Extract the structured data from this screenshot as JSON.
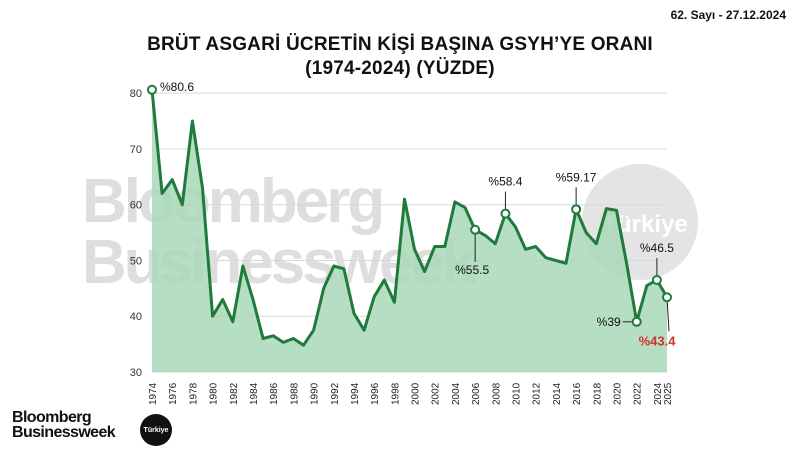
{
  "header": {
    "issue": "62. Sayı - 27.12.2024",
    "title_line1": "BRÜT ASGARİ ÜCRETİN KİŞİ BAŞINA GSYH’YE ORANI",
    "title_line2": "(1974-2024) (YÜZDE)"
  },
  "watermark": {
    "line1": "Bloomberg",
    "line2": "Businessweek",
    "badge": "Türkiye"
  },
  "brand": {
    "line1": "Bloomberg",
    "line2": "Businessweek",
    "badge": "Türkiye"
  },
  "colors": {
    "line": "#1f7a3c",
    "fill": "#a8d8b8",
    "highlight_label": "#d0342c",
    "grid": "#d9d9d9"
  },
  "chart_data": {
    "type": "area",
    "title": "BRÜT ASGARİ ÜCRETİN KİŞİ BAŞINA GSYH’YE ORANI (1974-2024) (YÜZDE)",
    "xlim": [
      1974,
      2025
    ],
    "ylim": [
      30,
      82
    ],
    "yticks": [
      30,
      40,
      50,
      60,
      70,
      80
    ],
    "xticks": [
      1974,
      1976,
      1978,
      1980,
      1982,
      1984,
      1986,
      1988,
      1990,
      1992,
      1994,
      1996,
      1998,
      2000,
      2002,
      2004,
      2006,
      2008,
      2010,
      2012,
      2014,
      2016,
      2018,
      2020,
      2022,
      2024,
      2025
    ],
    "grid": true,
    "x": [
      1974,
      1975,
      1976,
      1977,
      1978,
      1979,
      1980,
      1981,
      1982,
      1983,
      1984,
      1985,
      1986,
      1987,
      1988,
      1989,
      1990,
      1991,
      1992,
      1993,
      1994,
      1995,
      1996,
      1997,
      1998,
      1999,
      2000,
      2001,
      2002,
      2003,
      2004,
      2005,
      2006,
      2007,
      2008,
      2009,
      2010,
      2011,
      2012,
      2013,
      2014,
      2015,
      2016,
      2017,
      2018,
      2019,
      2020,
      2021,
      2022,
      2023,
      2024,
      2025
    ],
    "values": [
      80.6,
      62,
      64.5,
      60,
      75,
      63,
      40,
      43,
      39,
      49,
      43,
      36,
      36.5,
      35.3,
      36,
      34.8,
      37.5,
      45,
      49,
      48.5,
      40.5,
      37.5,
      43.5,
      46.5,
      42.5,
      61,
      52,
      48,
      52.5,
      52.5,
      60.5,
      59.5,
      55.5,
      54.5,
      53,
      58.4,
      56,
      52,
      52.5,
      50.5,
      50,
      49.5,
      59.17,
      55,
      53,
      59.3,
      59,
      49.5,
      39,
      45.5,
      46.5,
      43.4
    ],
    "annotations": [
      {
        "x": 1974,
        "y": 80.6,
        "label": "%80.6",
        "pos": "right"
      },
      {
        "x": 2006,
        "y": 55.5,
        "label": "%55.5",
        "pos": "below"
      },
      {
        "x": 2009,
        "y": 58.4,
        "label": "%58.4",
        "pos": "above"
      },
      {
        "x": 2016,
        "y": 59.17,
        "label": "%59.17",
        "pos": "above"
      },
      {
        "x": 2022,
        "y": 39,
        "label": "%39",
        "pos": "left"
      },
      {
        "x": 2024,
        "y": 46.5,
        "label": "%46.5",
        "pos": "above"
      },
      {
        "x": 2025,
        "y": 43.4,
        "label": "%43.4",
        "pos": "below",
        "highlight": true
      }
    ]
  }
}
